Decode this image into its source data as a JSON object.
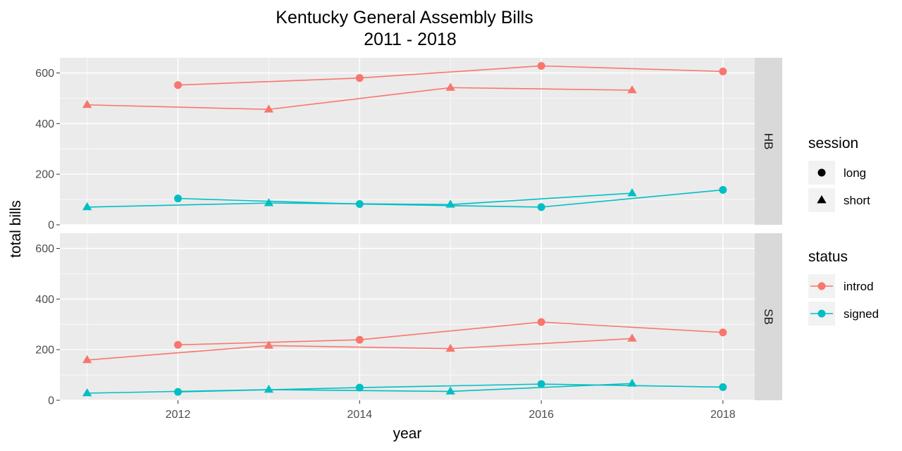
{
  "chart_data": {
    "type": "line",
    "title": [
      "Kentucky General Assembly Bills",
      "2011 - 2018"
    ],
    "xlabel": "year",
    "ylabel": "total bills",
    "x_ticks": [
      2012,
      2014,
      2016,
      2018
    ],
    "y_ticks": [
      0,
      200,
      400,
      600
    ],
    "xlim": [
      2010.7,
      2018.35
    ],
    "ylim": [
      0,
      660
    ],
    "grid": true,
    "facets": [
      {
        "label": "HB",
        "series": [
          {
            "status": "introd",
            "session": "long",
            "x": [
              2012,
              2014,
              2016,
              2018
            ],
            "values": [
              552,
              580,
              628,
              606
            ]
          },
          {
            "status": "introd",
            "session": "short",
            "x": [
              2011,
              2013,
              2015,
              2017
            ],
            "values": [
              474,
              456,
              542,
              532
            ]
          },
          {
            "status": "signed",
            "session": "long",
            "x": [
              2012,
              2014,
              2016,
              2018
            ],
            "values": [
              104,
              82,
              70,
              138
            ]
          },
          {
            "status": "signed",
            "session": "short",
            "x": [
              2011,
              2013,
              2015,
              2017
            ],
            "values": [
              70,
              86,
              80,
              125
            ]
          }
        ]
      },
      {
        "label": "SB",
        "series": [
          {
            "status": "introd",
            "session": "long",
            "x": [
              2012,
              2014,
              2016,
              2018
            ],
            "values": [
              219,
              239,
              309,
              268
            ]
          },
          {
            "status": "introd",
            "session": "short",
            "x": [
              2011,
              2013,
              2015,
              2017
            ],
            "values": [
              159,
              216,
              204,
              244
            ]
          },
          {
            "status": "signed",
            "session": "long",
            "x": [
              2012,
              2014,
              2016,
              2018
            ],
            "values": [
              33,
              50,
              64,
              52
            ]
          },
          {
            "status": "signed",
            "session": "short",
            "x": [
              2011,
              2013,
              2015,
              2017
            ],
            "values": [
              28,
              42,
              35,
              66
            ]
          }
        ]
      }
    ],
    "legends": [
      {
        "title": "session",
        "entries": [
          {
            "label": "long",
            "shape": "circle"
          },
          {
            "label": "short",
            "shape": "triangle"
          }
        ]
      },
      {
        "title": "status",
        "entries": [
          {
            "label": "introd",
            "color": "#F8766D"
          },
          {
            "label": "signed",
            "color": "#00BFC4"
          }
        ]
      }
    ],
    "legend_position": "right",
    "colors": {
      "introd": "#F8766D",
      "signed": "#00BFC4",
      "panel_bg": "#EBEBEB",
      "strip_bg": "#D9D9D9",
      "grid": "#FFFFFF"
    }
  }
}
